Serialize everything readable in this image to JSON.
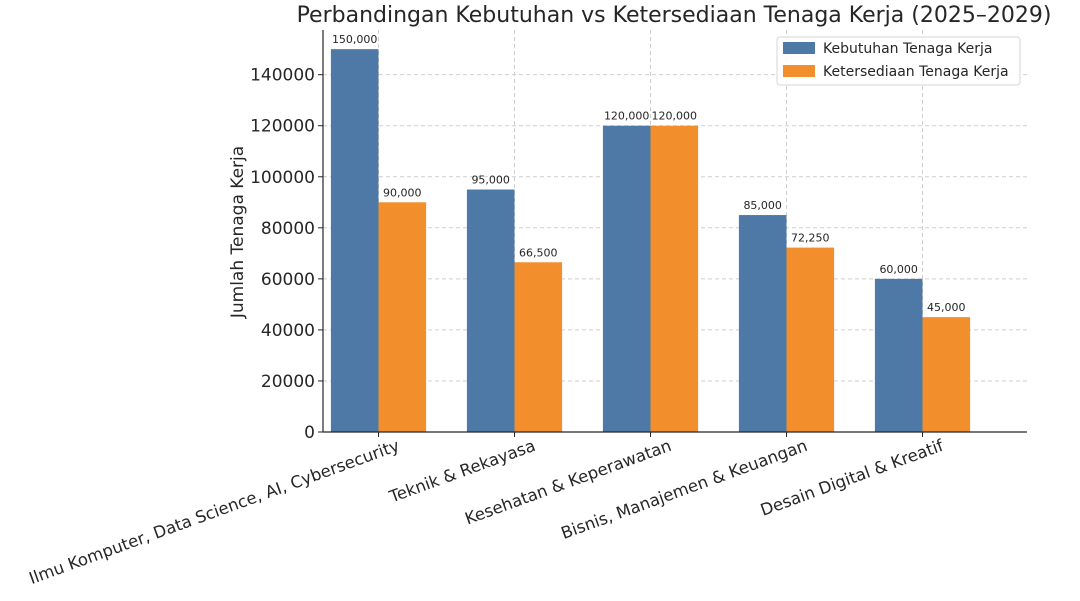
{
  "chart_data": {
    "type": "bar",
    "title": "Perbandingan Kebutuhan vs Ketersediaan Tenaga Kerja (2025–2029)",
    "xlabel": "",
    "ylabel": "Jumlah Tenaga Kerja",
    "categories": [
      "Ilmu Komputer, Data Science, AI, Cybersecurity",
      "Teknik & Rekayasa",
      "Kesehatan & Keperawatan",
      "Bisnis, Manajemen & Keuangan",
      "Desain Digital & Kreatif"
    ],
    "series": [
      {
        "name": "Kebutuhan Tenaga Kerja",
        "color": "#4e79a7",
        "values": [
          150000,
          95000,
          120000,
          85000,
          60000
        ],
        "labels": [
          "150,000",
          "95,000",
          "120,000",
          "85,000",
          "60,000"
        ]
      },
      {
        "name": "Ketersediaan Tenaga Kerja",
        "color": "#f28e2b",
        "values": [
          90000,
          66500,
          120000,
          72250,
          45000
        ],
        "labels": [
          "90,000",
          "66,500",
          "120,000",
          "72,250",
          "45,000"
        ]
      }
    ],
    "ylim": [
      0,
      157500
    ],
    "yticks": [
      0,
      20000,
      40000,
      60000,
      80000,
      100000,
      120000,
      140000
    ],
    "ytick_labels": [
      "0",
      "20000",
      "40000",
      "60000",
      "80000",
      "100000",
      "120000",
      "140000"
    ],
    "grid": true,
    "legend_position": "top-right"
  }
}
